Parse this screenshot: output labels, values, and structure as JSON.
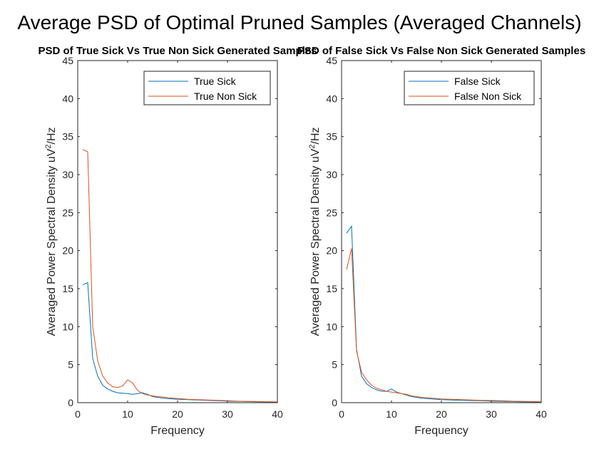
{
  "figure": {
    "title": "Average PSD of Optimal Pruned Samples (Averaged Channels)"
  },
  "colors": {
    "series1": "#0072BD",
    "series2": "#D95319",
    "axis": "#262626"
  },
  "chart_data": [
    {
      "type": "line",
      "title": "PSD of True Sick Vs True Non Sick Generated Samples",
      "xlabel": "Frequency",
      "ylabel": "Averaged Power Spectral Density uV",
      "ylabel_sup": "2",
      "ylabel_tail": "/Hz",
      "xlim": [
        0,
        40
      ],
      "ylim": [
        0,
        45
      ],
      "xticks": [
        0,
        10,
        20,
        30,
        40
      ],
      "yticks": [
        0,
        5,
        10,
        15,
        20,
        25,
        30,
        35,
        40,
        45
      ],
      "grid": false,
      "legend": "top-right",
      "series": [
        {
          "name": "True Sick",
          "x": [
            1,
            2,
            3,
            4,
            5,
            6,
            7,
            8,
            9,
            10,
            11,
            12,
            13,
            14,
            15,
            16,
            17,
            18,
            19,
            20,
            22,
            24,
            26,
            28,
            30,
            32,
            34,
            36,
            38,
            40
          ],
          "y": [
            15.5,
            15.8,
            5.8,
            3.5,
            2.3,
            1.8,
            1.5,
            1.3,
            1.25,
            1.2,
            1.1,
            1.2,
            1.3,
            1.1,
            0.8,
            0.7,
            0.6,
            0.55,
            0.5,
            0.45,
            0.4,
            0.35,
            0.3,
            0.25,
            0.2,
            0.18,
            0.15,
            0.12,
            0.1,
            0.08
          ]
        },
        {
          "name": "True Non Sick",
          "x": [
            1,
            2,
            3,
            4,
            5,
            6,
            7,
            8,
            9,
            10,
            11,
            12,
            13,
            14,
            15,
            16,
            17,
            18,
            19,
            20,
            22,
            24,
            26,
            28,
            30,
            32,
            34,
            36,
            38,
            40
          ],
          "y": [
            33.3,
            33.0,
            10.0,
            5.5,
            3.5,
            2.6,
            2.1,
            2.0,
            2.2,
            3.0,
            2.6,
            1.6,
            1.2,
            1.0,
            0.9,
            0.8,
            0.75,
            0.65,
            0.6,
            0.55,
            0.45,
            0.4,
            0.35,
            0.3,
            0.25,
            0.2,
            0.18,
            0.15,
            0.12,
            0.1
          ]
        }
      ]
    },
    {
      "type": "line",
      "title": "PSD of False Sick Vs False Non Sick Generated Samples",
      "xlabel": "Frequency",
      "ylabel": "Averaged Power Spectral Density uV",
      "ylabel_sup": "2",
      "ylabel_tail": "/Hz",
      "xlim": [
        0,
        40
      ],
      "ylim": [
        0,
        45
      ],
      "xticks": [
        0,
        10,
        20,
        30,
        40
      ],
      "yticks": [
        0,
        5,
        10,
        15,
        20,
        25,
        30,
        35,
        40,
        45
      ],
      "grid": false,
      "legend": "top-right",
      "series": [
        {
          "name": "False Sick",
          "x": [
            1,
            2,
            3,
            4,
            5,
            6,
            7,
            8,
            9,
            10,
            11,
            12,
            13,
            14,
            15,
            16,
            17,
            18,
            19,
            20,
            22,
            24,
            26,
            28,
            30,
            32,
            34,
            36,
            38,
            40
          ],
          "y": [
            22.3,
            23.2,
            7.0,
            3.5,
            2.5,
            2.0,
            1.7,
            1.5,
            1.5,
            1.8,
            1.4,
            1.2,
            1.0,
            0.8,
            0.7,
            0.6,
            0.55,
            0.5,
            0.45,
            0.4,
            0.35,
            0.3,
            0.28,
            0.25,
            0.2,
            0.18,
            0.15,
            0.12,
            0.1,
            0.08
          ]
        },
        {
          "name": "False Non Sick",
          "x": [
            1,
            2,
            3,
            4,
            5,
            6,
            7,
            8,
            9,
            10,
            11,
            12,
            13,
            14,
            15,
            16,
            17,
            18,
            19,
            20,
            22,
            24,
            26,
            28,
            30,
            32,
            34,
            36,
            38,
            40
          ],
          "y": [
            17.5,
            20.3,
            6.8,
            4.0,
            3.0,
            2.3,
            1.9,
            1.7,
            1.5,
            1.4,
            1.3,
            1.2,
            1.1,
            0.9,
            0.8,
            0.7,
            0.65,
            0.6,
            0.55,
            0.5,
            0.45,
            0.4,
            0.35,
            0.3,
            0.28,
            0.25,
            0.2,
            0.18,
            0.15,
            0.12
          ]
        }
      ]
    }
  ]
}
